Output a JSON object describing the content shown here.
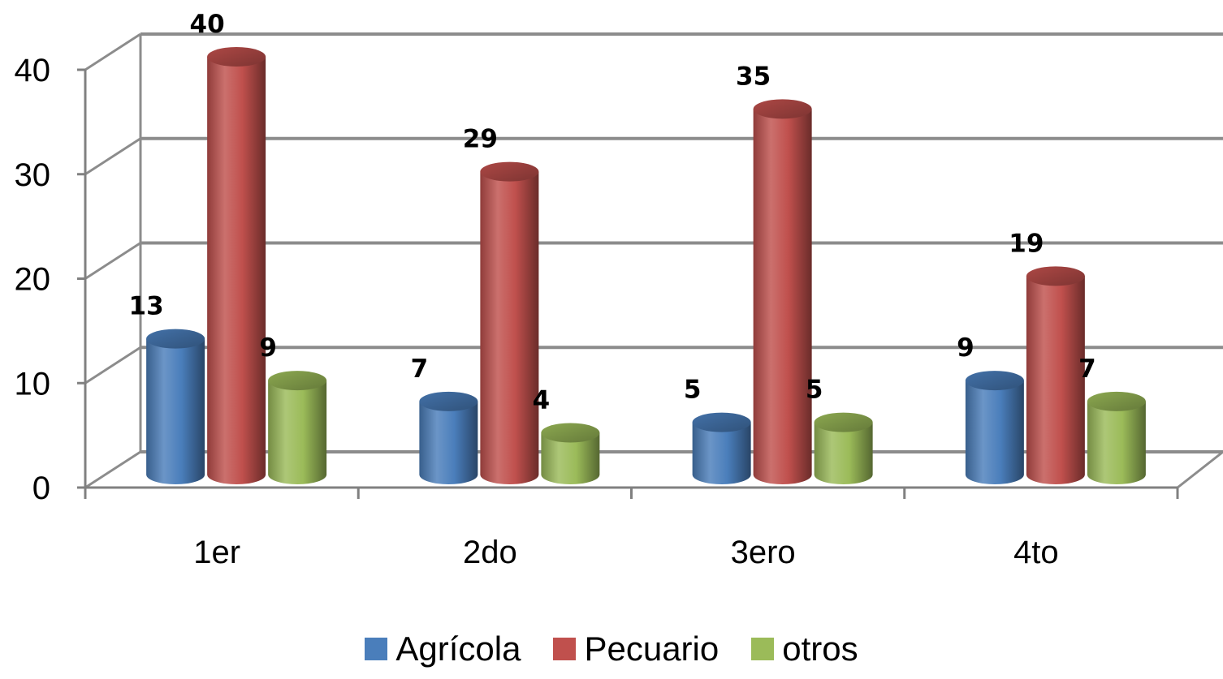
{
  "chart_data": {
    "type": "bar",
    "style": "3d-cylinder",
    "categories": [
      "1er",
      "2do",
      "3ero",
      "4to"
    ],
    "series": [
      {
        "name": "Agrícola",
        "color": "#4a7ebb",
        "values": [
          13,
          7,
          5,
          9
        ]
      },
      {
        "name": "Pecuario",
        "color": "#c0504d",
        "values": [
          40,
          29,
          35,
          19
        ]
      },
      {
        "name": "otros",
        "color": "#9bbb59",
        "values": [
          9,
          4,
          5,
          7
        ]
      }
    ],
    "ylim": [
      0,
      40
    ],
    "yticks": [
      0,
      10,
      20,
      30,
      40
    ],
    "grid": true,
    "legend": "bottom",
    "data_labels": true
  }
}
